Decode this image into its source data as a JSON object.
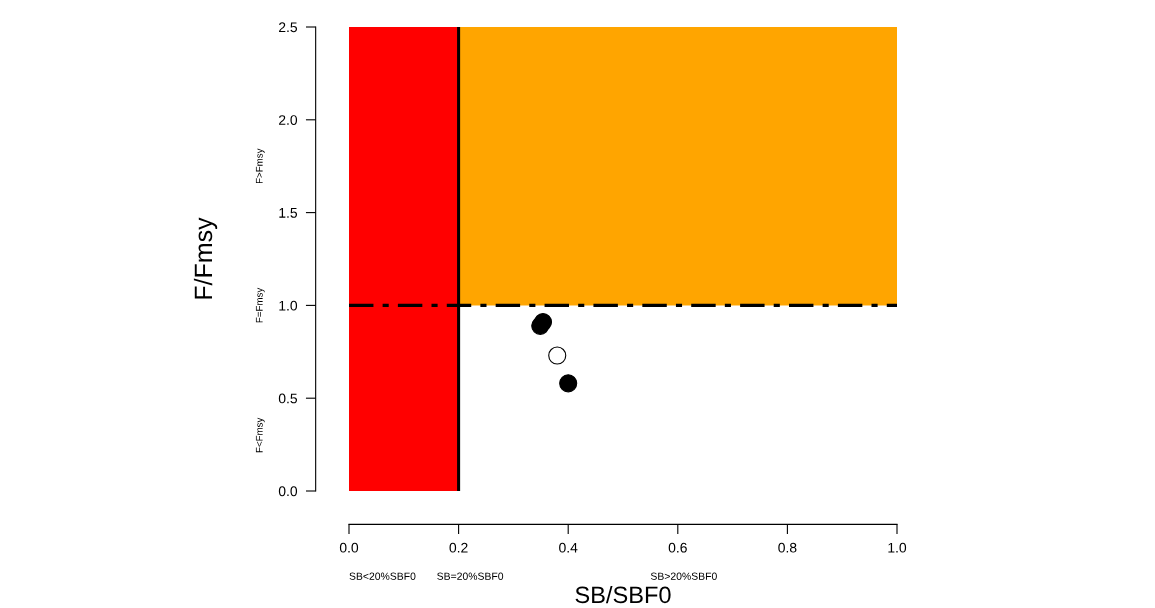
{
  "chart_data": {
    "type": "scatter",
    "xlabel": "SB/SBF0",
    "ylabel": "F/Fmsy",
    "xlim": [
      0,
      1
    ],
    "ylim": [
      0,
      2.5
    ],
    "xticks": [
      {
        "value": 0,
        "label": "0.0"
      },
      0.2,
      0.4,
      0.6,
      0.8,
      {
        "value": 1,
        "label": "1.0"
      }
    ],
    "yticks": [
      {
        "value": 0,
        "label": "0.0"
      },
      0.5,
      {
        "value": 1,
        "label": "1.0"
      },
      1.5,
      {
        "value": 2,
        "label": "2.0"
      },
      2.5
    ],
    "grid": false,
    "marker": "circle",
    "bands": [
      {
        "axis": "y",
        "from": 1,
        "to": 2.5,
        "color": "#ffa500"
      },
      {
        "axis": "x",
        "from": 0,
        "to": 0.2,
        "color": "#ff0000"
      }
    ],
    "ref_lines": [
      {
        "axis": "x",
        "value": 0.2,
        "color": "#000000",
        "line_style": "solid"
      },
      {
        "axis": "y",
        "value": 1,
        "color": "#000000",
        "line_style": "dashdot"
      }
    ],
    "series": [
      {
        "color": "#000000",
        "x": [
          0.349,
          0.354,
          0.4
        ],
        "values": [
          0.89,
          0.91,
          0.58
        ]
      },
      {
        "color": "#ffffff",
        "x": [
          0.38
        ],
        "values": [
          0.73
        ]
      }
    ],
    "annotations": [
      "F>Fmsy",
      "F=Fmsy",
      "F<Fmsy",
      "SB<20%SBF0",
      "SB=20%SBF0",
      "SB>20%SBF0"
    ]
  }
}
